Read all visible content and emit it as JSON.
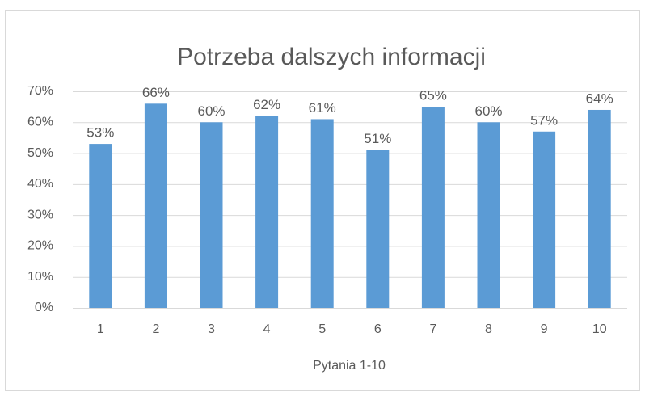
{
  "chart_data": {
    "type": "bar",
    "title": "Potrzeba dalszych informacji",
    "categories": [
      "1",
      "2",
      "3",
      "4",
      "5",
      "6",
      "7",
      "8",
      "9",
      "10"
    ],
    "values": [
      53,
      66,
      60,
      62,
      61,
      51,
      65,
      60,
      57,
      64
    ],
    "value_labels": [
      "53%",
      "66%",
      "60%",
      "62%",
      "61%",
      "51%",
      "65%",
      "60%",
      "57%",
      "64%"
    ],
    "color": "#5b9bd5",
    "x_label": "Pytania 1-10",
    "ylim": [
      0,
      70
    ],
    "yticks": [
      {
        "value": 0,
        "label": "0%"
      },
      {
        "value": 10,
        "label": "10%"
      },
      {
        "value": 20,
        "label": "20%"
      },
      {
        "value": 30,
        "label": "30%"
      },
      {
        "value": 40,
        "label": "40%"
      },
      {
        "value": 50,
        "label": "50%"
      },
      {
        "value": 60,
        "label": "60%"
      },
      {
        "value": 70,
        "label": "70%"
      }
    ],
    "grid": true
  }
}
